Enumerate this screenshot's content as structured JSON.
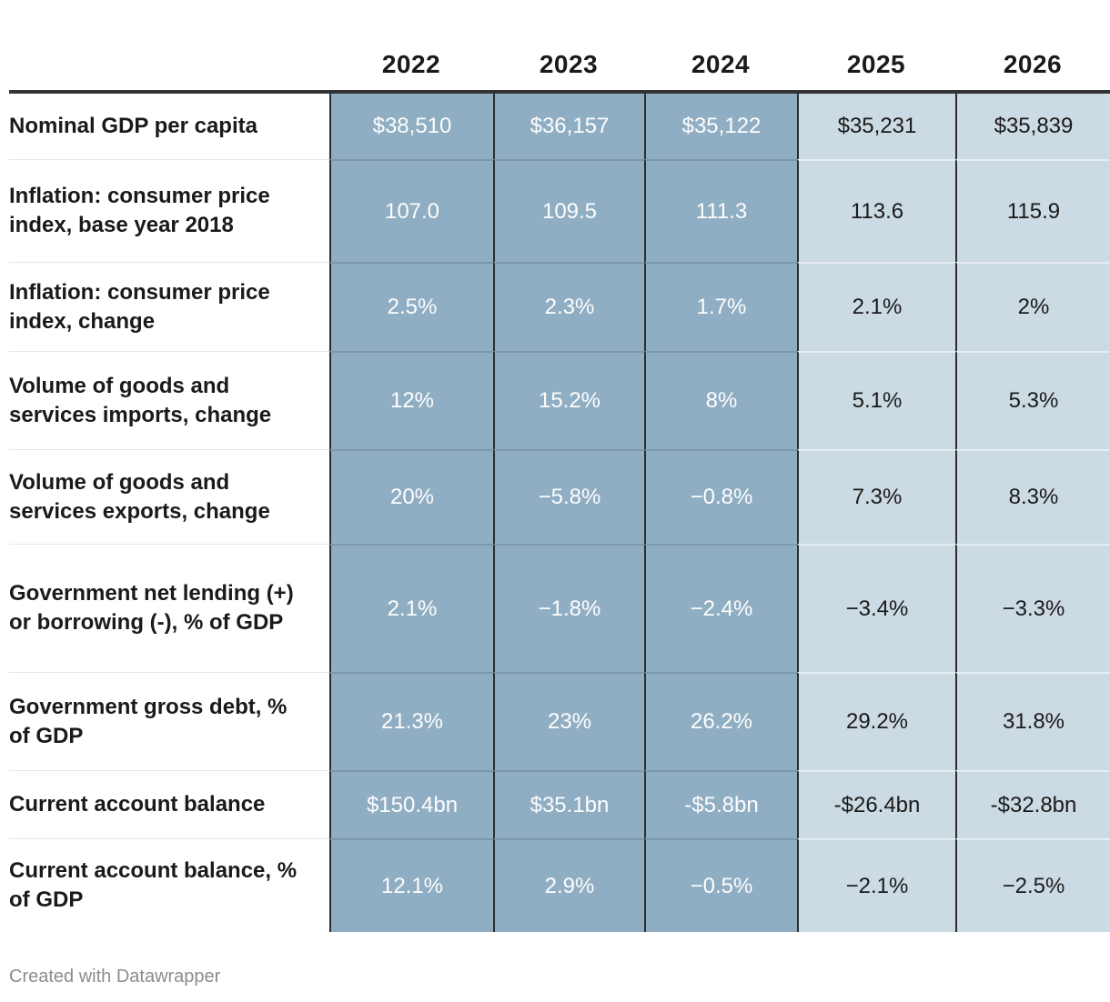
{
  "chart_data": {
    "type": "table",
    "columns": [
      "2022",
      "2023",
      "2024",
      "2025",
      "2026"
    ],
    "rows": [
      {
        "label": "Nominal GDP per capita",
        "values": [
          "$38,510",
          "$36,157",
          "$35,122",
          "$35,231",
          "$35,839"
        ]
      },
      {
        "label": "Inflation: consumer price index, base year 2018",
        "values": [
          "107.0",
          "109.5",
          "111.3",
          "113.6",
          "115.9"
        ]
      },
      {
        "label": "Inflation: consumer price index, change",
        "values": [
          "2.5%",
          "2.3%",
          "1.7%",
          "2.1%",
          "2%"
        ]
      },
      {
        "label": "Volume of goods and services imports, change",
        "values": [
          "12%",
          "15.2%",
          "8%",
          "5.1%",
          "5.3%"
        ]
      },
      {
        "label": "Volume of goods and services exports, change",
        "values": [
          "20%",
          "−5.8%",
          "−0.8%",
          "7.3%",
          "8.3%"
        ]
      },
      {
        "label": "Government net lending (+) or borrowing (-), % of GDP",
        "values": [
          "2.1%",
          "−1.8%",
          "−2.4%",
          "−3.4%",
          "−3.3%"
        ]
      },
      {
        "label": "Government gross debt, % of GDP",
        "values": [
          "21.3%",
          "23%",
          "26.2%",
          "29.2%",
          "31.8%"
        ]
      },
      {
        "label": "Current account balance",
        "values": [
          "$150.4bn",
          "$35.1bn",
          "-$5.8bn",
          "-$26.4bn",
          "-$32.8bn"
        ]
      },
      {
        "label": "Current account balance, % of GDP",
        "values": [
          "12.1%",
          "2.9%",
          "−0.5%",
          "−2.1%",
          "−2.5%"
        ]
      }
    ],
    "layout": {
      "dark_shaded_columns": [
        "2022",
        "2023",
        "2024"
      ],
      "light_shaded_columns": [
        "2025",
        "2026"
      ],
      "grid": "column borders dark, thin row dividers, thick rule under header"
    }
  },
  "footer": {
    "credit": "Created with Datawrapper"
  },
  "colors": {
    "dark_column_bg": "#90aec3",
    "light_column_bg": "#ccdae3",
    "dark_column_text": "#fdfdfd",
    "text": "#1a1a1a",
    "column_border": "#2e2e2e",
    "header_rule": "#333333",
    "row_divider": "#e6e6e6",
    "credit_text": "#8c8c8c"
  }
}
